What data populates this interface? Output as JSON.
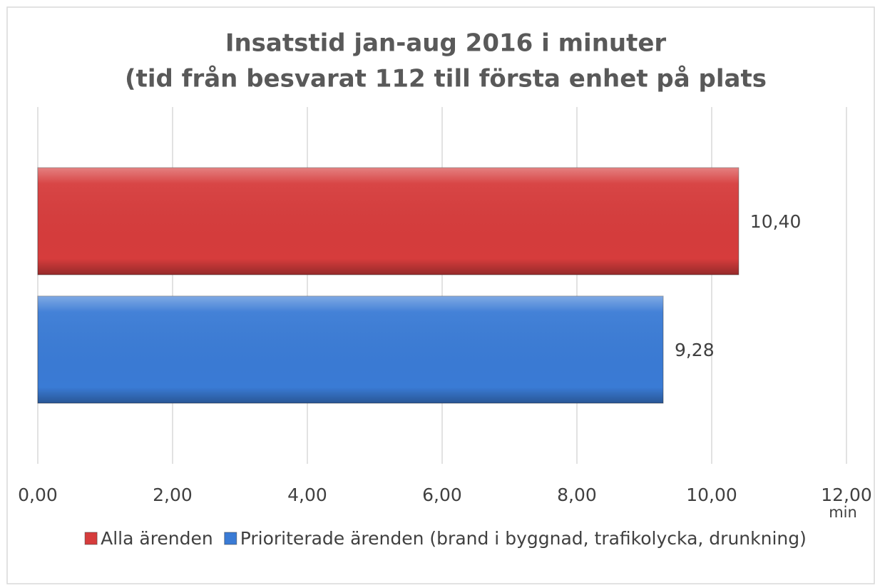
{
  "chart_data": {
    "type": "bar",
    "orientation": "horizontal",
    "title": [
      "Insatstid jan-aug 2016 i minuter",
      "(tid från besvarat 112 till första enhet på plats"
    ],
    "categories": [
      null
    ],
    "series": [
      {
        "name": "Alla ärenden",
        "color": "#d63c3c",
        "values": [
          10.4
        ],
        "value_labels": [
          "10,40"
        ]
      },
      {
        "name": "Prioriterade ärenden (brand i byggnad, trafikolycka, drunkning)",
        "color": "#3a7bd5",
        "values": [
          9.28
        ],
        "value_labels": [
          "9,28"
        ]
      }
    ],
    "xlim": [
      0,
      12
    ],
    "xticks": [
      {
        "value": 0,
        "label": "0,00"
      },
      {
        "value": 2,
        "label": "2,00"
      },
      {
        "value": 4,
        "label": "4,00"
      },
      {
        "value": 6,
        "label": "6,00"
      },
      {
        "value": 8,
        "label": "8,00"
      },
      {
        "value": 10,
        "label": "10,00"
      },
      {
        "value": 12,
        "label": "12,00"
      }
    ],
    "x_label": "min",
    "grid": true,
    "legend": "bottom"
  }
}
